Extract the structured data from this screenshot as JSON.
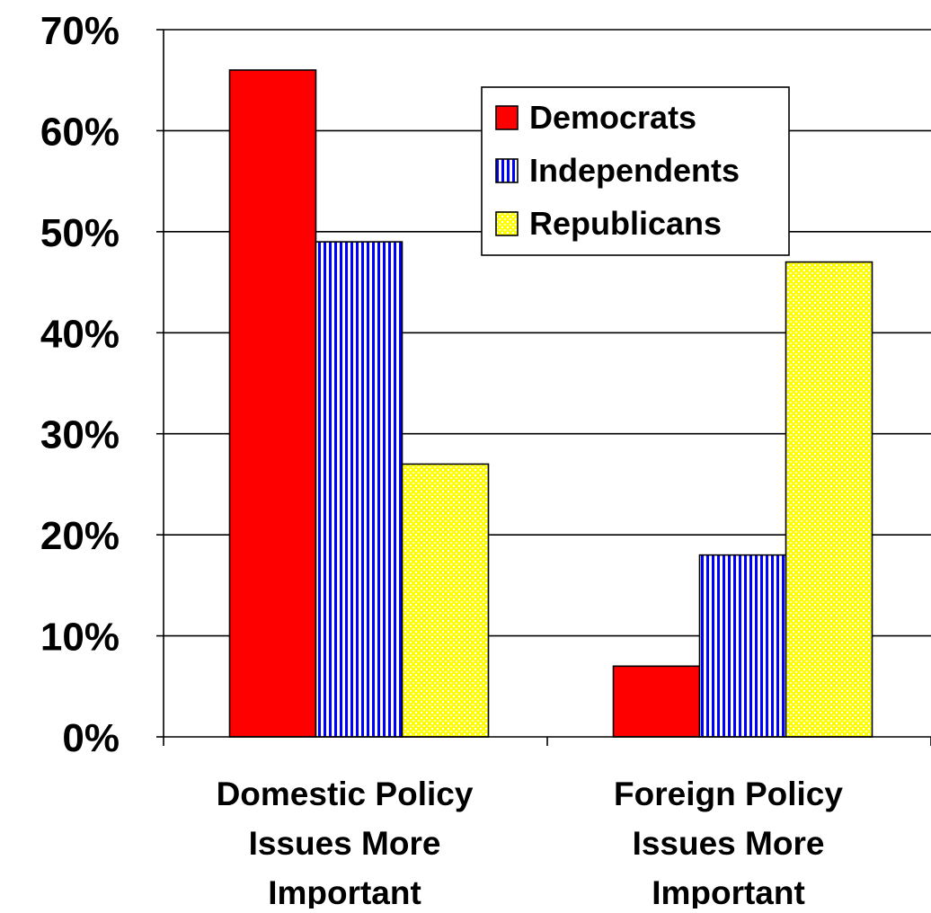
{
  "chart_data": {
    "type": "bar",
    "categories": [
      [
        "Domestic Policy",
        "Issues More",
        "Important"
      ],
      [
        "Foreign Policy",
        "Issues More",
        "Important"
      ]
    ],
    "series": [
      {
        "name": "Democrats",
        "values": [
          66,
          7
        ],
        "color": "#ff0000",
        "pattern": "solid"
      },
      {
        "name": "Independents",
        "values": [
          49,
          18
        ],
        "color": "#0000ff",
        "pattern": "vertical-stripes"
      },
      {
        "name": "Republicans",
        "values": [
          27,
          47
        ],
        "color": "#ffff00",
        "pattern": "checkered"
      }
    ],
    "y_ticks": [
      "0%",
      "10%",
      "20%",
      "30%",
      "40%",
      "50%",
      "60%",
      "70%"
    ],
    "ylim": [
      0,
      70
    ],
    "y_unit": "%",
    "grid": true,
    "legend_position": "top-center"
  }
}
